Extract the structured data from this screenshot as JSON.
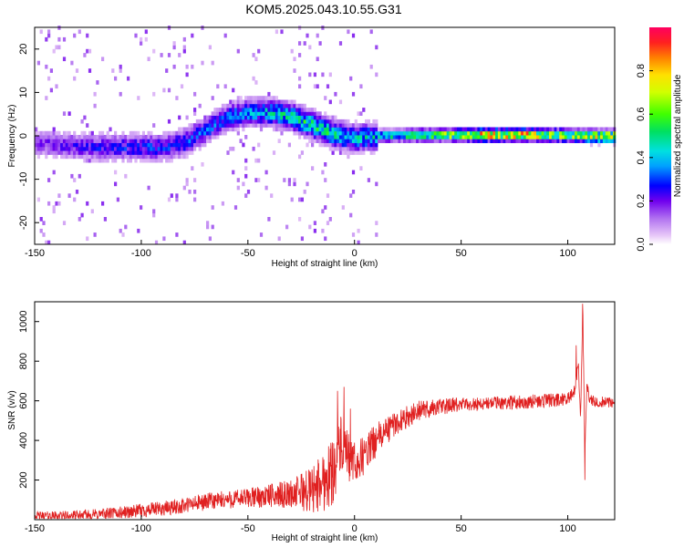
{
  "title": "KOM5.2025.043.10.55.G31",
  "chart_data": [
    {
      "type": "heatmap",
      "xlabel": "Height of straight line (km)",
      "ylabel": "Frequency (Hz)",
      "xlim": [
        -150,
        122
      ],
      "ylim": [
        -25,
        25
      ],
      "xticks": [
        "-150",
        "-100",
        "-50",
        "0",
        "50",
        "100"
      ],
      "yticks": [
        "-20",
        "-10",
        "0",
        "10",
        "20"
      ],
      "colorbar": {
        "label": "Normalized spectral amplitude",
        "range": [
          0,
          1
        ],
        "ticks": [
          "0.0",
          "0.2",
          "0.4",
          "0.6",
          "0.8"
        ]
      },
      "ridge": {
        "x": [
          -150,
          -130,
          -110,
          -100,
          -90,
          -80,
          -70,
          -60,
          -50,
          -40,
          -30,
          -20,
          -10,
          0,
          10,
          20,
          40,
          60,
          80,
          100,
          110,
          122
        ],
        "y": [
          -2,
          -3,
          -3,
          -3,
          -3,
          -2,
          1,
          4,
          5,
          5,
          4,
          2,
          0,
          -1,
          -0.5,
          -0.3,
          -0.2,
          -0.2,
          -0.2,
          -0.3,
          -0.5,
          -0.5
        ]
      },
      "ridge_amplitude": {
        "x": [
          -150,
          -100,
          -60,
          -40,
          -20,
          0,
          20,
          40,
          60,
          80,
          100,
          110,
          122
        ],
        "values": [
          0.2,
          0.3,
          0.35,
          0.45,
          0.55,
          0.45,
          0.5,
          0.7,
          0.95,
          0.9,
          0.75,
          0.85,
          0.9
        ]
      }
    },
    {
      "type": "line",
      "xlabel": "Height of straight line (km)",
      "ylabel": "SNR (v/v)",
      "xlim": [
        -150,
        122
      ],
      "ylim": [
        0,
        1100
      ],
      "xticks": [
        "-150",
        "-100",
        "-50",
        "0",
        "50",
        "100"
      ],
      "yticks": [
        "200",
        "400",
        "600",
        "800",
        "1000"
      ],
      "color": "#e02020",
      "x": [
        -150,
        -130,
        -110,
        -100,
        -90,
        -80,
        -70,
        -60,
        -50,
        -40,
        -30,
        -20,
        -15,
        -10,
        -7,
        -5,
        0,
        5,
        10,
        15,
        20,
        25,
        30,
        40,
        50,
        60,
        70,
        80,
        90,
        100,
        103,
        105,
        106,
        107,
        108,
        109,
        110,
        115,
        122
      ],
      "y": [
        20,
        20,
        35,
        45,
        55,
        70,
        90,
        100,
        110,
        120,
        130,
        150,
        190,
        250,
        380,
        330,
        280,
        330,
        400,
        450,
        490,
        520,
        550,
        570,
        580,
        585,
        590,
        595,
        600,
        605,
        650,
        780,
        500,
        1080,
        350,
        700,
        600,
        595,
        590
      ],
      "noise_envelope": {
        "x": [
          -150,
          -50,
          -30,
          -10,
          0,
          20,
          50,
          100,
          122
        ],
        "amp": [
          20,
          50,
          70,
          180,
          110,
          60,
          35,
          35,
          25
        ]
      },
      "spikes": [
        {
          "x": -25,
          "y": 230
        },
        {
          "x": -8,
          "y": 650
        },
        {
          "x": -5,
          "y": 670
        },
        {
          "x": -2,
          "y": 560
        },
        {
          "x": 104,
          "y": 880
        },
        {
          "x": 107,
          "y": 1090
        },
        {
          "x": 108,
          "y": 200
        }
      ]
    }
  ]
}
